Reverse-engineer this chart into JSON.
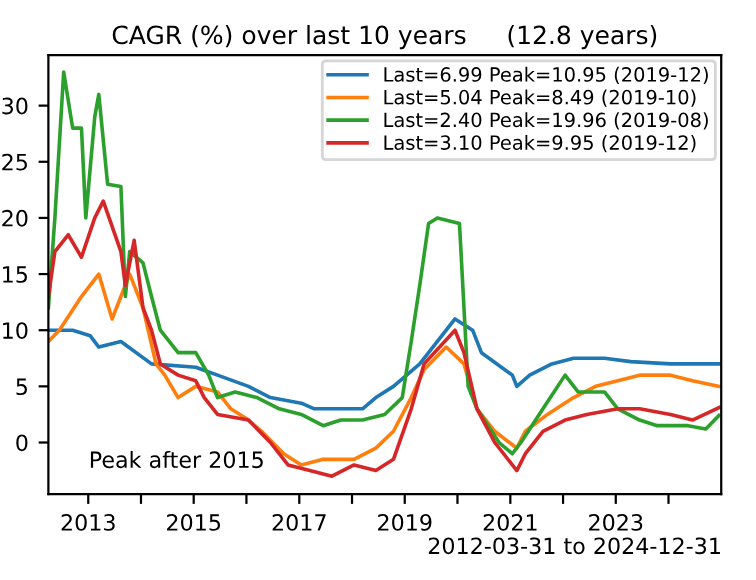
{
  "chart_data": {
    "type": "line",
    "title": "CAGR (%) over last 10 years     (12.8 years)",
    "annotations": [
      "Peak after 2015",
      "2012-03-31 to 2024-12-31"
    ],
    "xlim": [
      "2012-03-31",
      "2024-12-31"
    ],
    "xticks": [
      {
        "value": "2013-01-01",
        "label": "2013"
      },
      {
        "value": "2014-01-01",
        "label": null
      },
      {
        "value": "2015-01-01",
        "label": "2015"
      },
      {
        "value": "2016-01-01",
        "label": null
      },
      {
        "value": "2017-01-01",
        "label": "2017"
      },
      {
        "value": "2018-01-01",
        "label": null
      },
      {
        "value": "2019-01-01",
        "label": "2019"
      },
      {
        "value": "2020-01-01",
        "label": null
      },
      {
        "value": "2021-01-01",
        "label": "2021"
      },
      {
        "value": "2022-01-01",
        "label": null
      },
      {
        "value": "2023-01-01",
        "label": "2023"
      },
      {
        "value": "2024-01-01",
        "label": null
      }
    ],
    "ylim": [
      -4.6,
      34.5
    ],
    "yticks": [
      0,
      5,
      10,
      15,
      20,
      25,
      30
    ],
    "grid": false,
    "legend": "top right",
    "series": [
      {
        "name": "Last=6.99 Peak=10.95 (2019-12)",
        "color": "#1f77b4",
        "x": [
          "2012-03-31",
          "2012-09",
          "2013-01",
          "2013-03",
          "2013-08",
          "2014-03",
          "2015-01",
          "2015-06",
          "2016-01",
          "2016-06",
          "2017-01",
          "2017-04",
          "2018-03",
          "2018-06",
          "2018-10",
          "2019-04",
          "2019-08",
          "2019-12",
          "2020-04",
          "2020-06",
          "2021-01",
          "2021-02",
          "2021-05",
          "2021-10",
          "2022-03",
          "2022-10",
          "2023-04",
          "2024-01",
          "2024-12"
        ],
        "values": [
          10,
          10,
          9.5,
          8.5,
          9,
          7,
          6.7,
          6,
          5,
          4,
          3.5,
          3,
          3,
          4,
          5,
          7,
          9,
          11,
          10,
          8,
          6,
          5,
          6,
          7,
          7.5,
          7.5,
          7.2,
          7,
          7
        ]
      },
      {
        "name": "Last=5.04 Peak=8.49 (2019-10)",
        "color": "#ff7f0e",
        "x": [
          "2012-03-31",
          "2012-06",
          "2012-11",
          "2013-03",
          "2013-06",
          "2013-10",
          "2014-01",
          "2014-04",
          "2014-06",
          "2014-09",
          "2015-01",
          "2015-06",
          "2015-09",
          "2016-01",
          "2016-04",
          "2016-09",
          "2017-01",
          "2017-06",
          "2018-01",
          "2018-06",
          "2018-10",
          "2019-02",
          "2019-05",
          "2019-10",
          "2020-02",
          "2020-05",
          "2020-09",
          "2021-02",
          "2021-04",
          "2021-09",
          "2022-03",
          "2022-08",
          "2023-01",
          "2023-06",
          "2024-01",
          "2024-06",
          "2024-12"
        ],
        "values": [
          9,
          10,
          13,
          15,
          11,
          15,
          12,
          7,
          6,
          4,
          5,
          4.5,
          3,
          2,
          1,
          -1,
          -2,
          -1.5,
          -1.5,
          -0.5,
          1,
          4,
          6.5,
          8.5,
          7,
          3,
          1,
          -0.5,
          1,
          2.5,
          4,
          5,
          5.5,
          6,
          6,
          5.5,
          5
        ]
      },
      {
        "name": "Last=2.40 Peak=19.96 (2019-08)",
        "color": "#2ca02c",
        "x": [
          "2012-03-31",
          "2012-05",
          "2012-07",
          "2012-09",
          "2012-11",
          "2012-12",
          "2013-02",
          "2013-03",
          "2013-05",
          "2013-08",
          "2013-09",
          "2013-10",
          "2014-01",
          "2014-03",
          "2014-05",
          "2014-09",
          "2015-01",
          "2015-04",
          "2015-06",
          "2015-10",
          "2016-03",
          "2016-08",
          "2017-01",
          "2017-06",
          "2017-10",
          "2018-03",
          "2018-08",
          "2018-12",
          "2019-02",
          "2019-04",
          "2019-06",
          "2019-08",
          "2020-01",
          "2020-03",
          "2020-05",
          "2020-10",
          "2021-01",
          "2021-03",
          "2021-08",
          "2022-01",
          "2022-04",
          "2022-10",
          "2023-01",
          "2023-06",
          "2023-10",
          "2024-05",
          "2024-09",
          "2024-12"
        ],
        "values": [
          12,
          20,
          33,
          28,
          28,
          20,
          29,
          31,
          23,
          22.8,
          13,
          17,
          16,
          13,
          10,
          8,
          8,
          6,
          4,
          4.5,
          4,
          3,
          2.5,
          1.5,
          2,
          2,
          2.5,
          4,
          9,
          14,
          19.5,
          20,
          19.5,
          5,
          3,
          0,
          -1,
          0,
          3,
          6,
          4.5,
          4.5,
          3,
          2,
          1.5,
          1.5,
          1.2,
          2.4
        ]
      },
      {
        "name": "Last=3.10 Peak=9.95 (2019-12)",
        "color": "#d62728",
        "x": [
          "2012-03-31",
          "2012-05",
          "2012-08",
          "2012-11",
          "2013-02",
          "2013-04",
          "2013-08",
          "2013-09",
          "2013-11",
          "2014-01",
          "2014-03",
          "2014-05",
          "2014-09",
          "2015-01",
          "2015-03",
          "2015-06",
          "2016-01",
          "2016-06",
          "2016-10",
          "2017-03",
          "2017-08",
          "2018-01",
          "2018-06",
          "2018-10",
          "2019-02",
          "2019-05",
          "2019-12",
          "2020-02",
          "2020-05",
          "2020-09",
          "2021-02",
          "2021-04",
          "2021-08",
          "2022-01",
          "2022-06",
          "2023-01",
          "2023-06",
          "2024-01",
          "2024-06",
          "2024-12"
        ],
        "values": [
          13,
          17,
          18.5,
          16.5,
          20,
          21.5,
          17,
          14,
          18,
          12,
          10,
          7,
          6,
          5.5,
          4,
          2.5,
          2,
          0,
          -2,
          -2.5,
          -3,
          -2,
          -2.5,
          -1.5,
          3,
          7,
          10,
          8,
          3,
          0,
          -2.5,
          -1,
          1,
          2,
          2.5,
          3,
          3,
          2.5,
          2,
          3.1
        ]
      }
    ]
  }
}
